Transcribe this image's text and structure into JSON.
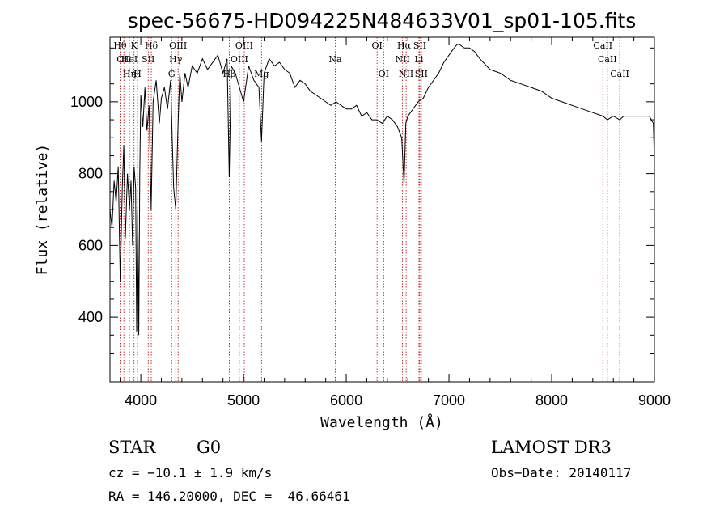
{
  "chart_data": {
    "type": "line",
    "title": "spec-56675-HD094225N484633V01_sp01-105.fits",
    "xlabel": "Wavelength (Å)",
    "ylabel": "Flux (relative)",
    "xlim": [
      3700,
      9000
    ],
    "ylim": [
      220,
      1180
    ],
    "x_ticks": [
      4000,
      5000,
      6000,
      7000,
      8000,
      9000
    ],
    "y_ticks": [
      400,
      600,
      800,
      1000
    ],
    "series": [
      {
        "name": "flux",
        "x": [
          3700,
          3720,
          3740,
          3760,
          3780,
          3800,
          3820,
          3835,
          3850,
          3870,
          3890,
          3905,
          3920,
          3935,
          3950,
          3960,
          3970,
          3980,
          3990,
          4000,
          4020,
          4040,
          4060,
          4080,
          4101,
          4120,
          4150,
          4180,
          4200,
          4230,
          4260,
          4290,
          4320,
          4340,
          4361,
          4380,
          4400,
          4430,
          4460,
          4500,
          4550,
          4600,
          4650,
          4700,
          4750,
          4800,
          4840,
          4861,
          4880,
          4920,
          4960,
          5000,
          5050,
          5100,
          5150,
          5175,
          5200,
          5250,
          5300,
          5350,
          5400,
          5450,
          5500,
          5550,
          5600,
          5650,
          5700,
          5750,
          5800,
          5850,
          5900,
          5950,
          6000,
          6050,
          6100,
          6150,
          6200,
          6250,
          6300,
          6350,
          6400,
          6450,
          6500,
          6540,
          6563,
          6580,
          6600,
          6650,
          6700,
          6750,
          6800,
          6850,
          6900,
          6950,
          7000,
          7050,
          7080,
          7100,
          7150,
          7200,
          7250,
          7300,
          7400,
          7500,
          7600,
          7700,
          7800,
          7900,
          8000,
          8100,
          8200,
          8300,
          8400,
          8500,
          8542,
          8600,
          8662,
          8700,
          8800,
          8900,
          8950,
          8990,
          9000
        ],
        "values": [
          700,
          650,
          780,
          720,
          820,
          500,
          760,
          880,
          620,
          800,
          700,
          780,
          600,
          820,
          760,
          360,
          700,
          350,
          800,
          1020,
          930,
          1040,
          920,
          990,
          700,
          1000,
          1060,
          940,
          1010,
          1040,
          980,
          1060,
          760,
          700,
          920,
          1080,
          1000,
          1080,
          1040,
          1100,
          1080,
          1120,
          1090,
          1110,
          1130,
          1080,
          1120,
          790,
          1100,
          1080,
          1040,
          1000,
          1100,
          1060,
          1040,
          890,
          1080,
          1120,
          1100,
          1110,
          1090,
          1080,
          1040,
          1060,
          1050,
          1030,
          1020,
          1010,
          1000,
          990,
          1000,
          990,
          980,
          980,
          990,
          960,
          970,
          950,
          950,
          940,
          960,
          950,
          930,
          900,
          770,
          940,
          960,
          980,
          1000,
          1010,
          1040,
          1060,
          1080,
          1110,
          1130,
          1150,
          1160,
          1160,
          1150,
          1150,
          1140,
          1120,
          1090,
          1080,
          1060,
          1050,
          1040,
          1030,
          1010,
          1000,
          990,
          980,
          970,
          960,
          950,
          960,
          950,
          960,
          960,
          960,
          960,
          940,
          830
        ]
      }
    ],
    "lines": [
      {
        "wave": 3798,
        "labels": [
          "Hθ"
        ]
      },
      {
        "wave": 3835,
        "labels": [
          "",
          "OII"
        ]
      },
      {
        "wave": 3889,
        "labels": [
          "",
          "HeI",
          "Hη"
        ]
      },
      {
        "wave": 3934,
        "labels": [
          "K"
        ]
      },
      {
        "wave": 3968,
        "labels": [
          "",
          "",
          "H"
        ]
      },
      {
        "wave": 4072,
        "labels": [
          "",
          "SII"
        ]
      },
      {
        "wave": 4102,
        "labels": [
          "Hδ"
        ]
      },
      {
        "wave": 4300,
        "labels": [
          "",
          "",
          "G"
        ]
      },
      {
        "wave": 4340,
        "labels": [
          "",
          "Hγ"
        ]
      },
      {
        "wave": 4363,
        "labels": [
          "OIII"
        ]
      },
      {
        "wave": 4861,
        "labels": [
          "",
          "",
          "Hβ"
        ]
      },
      {
        "wave": 4959,
        "labels": [
          "",
          "OIII"
        ]
      },
      {
        "wave": 5007,
        "labels": [
          "OIII"
        ]
      },
      {
        "wave": 5175,
        "labels": [
          "",
          "",
          "Mg"
        ]
      },
      {
        "wave": 5893,
        "labels": [
          "",
          "Na"
        ]
      },
      {
        "wave": 6300,
        "labels": [
          "OI"
        ]
      },
      {
        "wave": 6364,
        "labels": [
          "",
          "",
          "OI"
        ]
      },
      {
        "wave": 6548,
        "labels": [
          "",
          "NII"
        ]
      },
      {
        "wave": 6563,
        "labels": [
          "Hα"
        ]
      },
      {
        "wave": 6583,
        "labels": [
          "",
          "",
          "NII"
        ]
      },
      {
        "wave": 6708,
        "labels": [
          "",
          "Li"
        ]
      },
      {
        "wave": 6716,
        "labels": [
          "SII"
        ]
      },
      {
        "wave": 6731,
        "labels": [
          "",
          "",
          "SII"
        ]
      },
      {
        "wave": 8498,
        "labels": [
          "CaII"
        ]
      },
      {
        "wave": 8542,
        "labels": [
          "",
          "CaII"
        ]
      },
      {
        "wave": 8662,
        "labels": [
          "",
          "",
          "CaII"
        ]
      }
    ],
    "colors": {
      "data": "#000000",
      "line_marker": "#b00000",
      "axis": "#000000"
    }
  },
  "info": {
    "object_class": "STAR",
    "subclass": "G0",
    "survey": "LAMOST DR3",
    "redshift": "cz = −10.1 ± 1.9 km/s",
    "obs_date": "Obs−Date: 20140117",
    "coords": "RA = 146.20000, DEC =  46.66461"
  }
}
